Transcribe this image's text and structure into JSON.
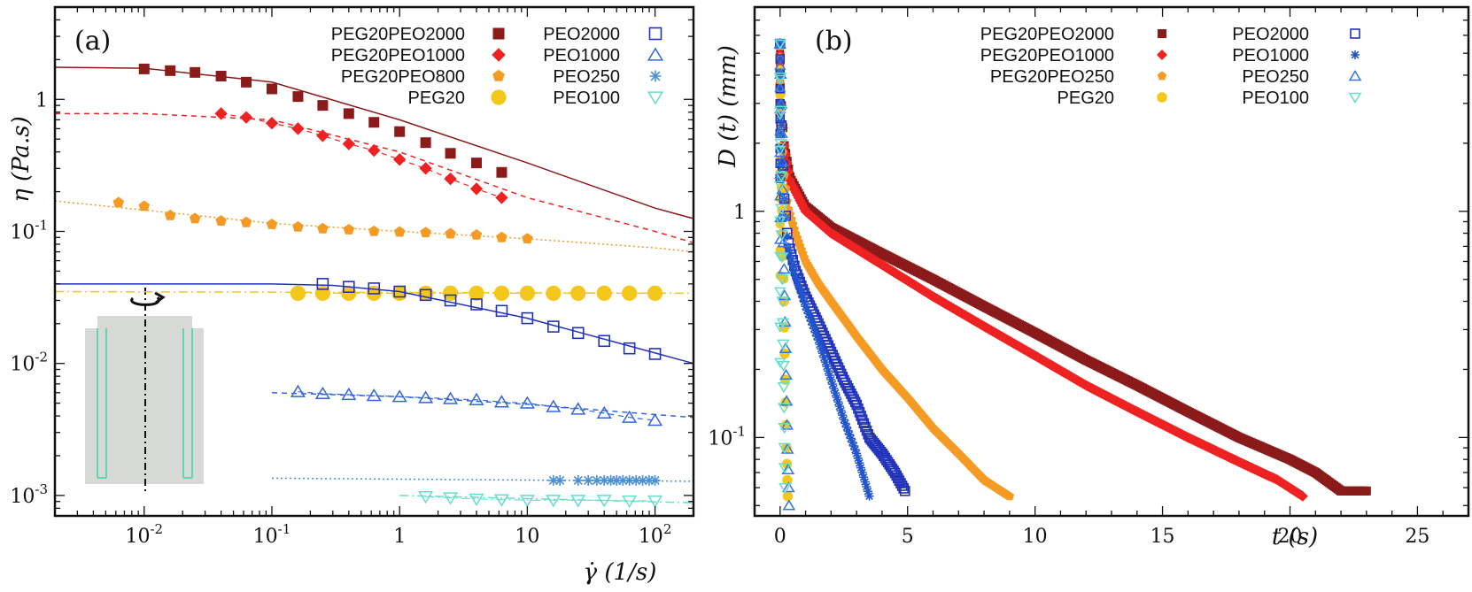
{
  "chart_data": [
    {
      "type": "scatter",
      "panel_label": "(a)",
      "xlabel": "γ̇ (1/s)",
      "ylabel": "η (Pa.s)",
      "xscale": "log",
      "yscale": "log",
      "xlim": [
        0.002,
        200
      ],
      "ylim": [
        0.0007,
        5
      ],
      "xticks": [
        {
          "v": 0.01,
          "base": "10",
          "exp": "-2"
        },
        {
          "v": 0.1,
          "base": "10",
          "exp": "-1"
        },
        {
          "v": 1,
          "base": "1",
          "exp": ""
        },
        {
          "v": 10,
          "base": "10",
          "exp": ""
        },
        {
          "v": 100,
          "base": "10",
          "exp": "2"
        }
      ],
      "yticks": [
        {
          "v": 0.001,
          "base": "10",
          "exp": "-3"
        },
        {
          "v": 0.01,
          "base": "10",
          "exp": "-2"
        },
        {
          "v": 0.1,
          "base": "10",
          "exp": "-1"
        },
        {
          "v": 1,
          "base": "1",
          "exp": ""
        }
      ],
      "series": [
        {
          "name": "PEG20PEO2000",
          "marker": "square-filled",
          "color": "#8b1a1a",
          "x": [
            0.01,
            0.016,
            0.025,
            0.04,
            0.063,
            0.1,
            0.16,
            0.25,
            0.4,
            0.63,
            1,
            1.6,
            2.5,
            4,
            6.3
          ],
          "y": [
            1.7,
            1.65,
            1.6,
            1.5,
            1.35,
            1.2,
            1.05,
            0.9,
            0.78,
            0.67,
            0.57,
            0.47,
            0.39,
            0.33,
            0.28
          ],
          "fit": {
            "type": "solid",
            "x": [
              0.002,
              0.01,
              0.1,
              1,
              10,
              100,
              200
            ],
            "y": [
              1.75,
              1.72,
              1.35,
              0.7,
              0.33,
              0.15,
              0.125
            ]
          }
        },
        {
          "name": "PEG20PEO1000",
          "marker": "diamond-filled",
          "color": "#ee2222",
          "x": [
            0.04,
            0.063,
            0.1,
            0.16,
            0.25,
            0.4,
            0.63,
            1,
            1.6,
            2.5,
            4,
            6.3
          ],
          "y": [
            0.78,
            0.73,
            0.66,
            0.6,
            0.53,
            0.46,
            0.41,
            0.35,
            0.3,
            0.25,
            0.21,
            0.18
          ],
          "fit": {
            "type": "dashed",
            "x": [
              0.002,
              0.01,
              0.1,
              1,
              10,
              100,
              200
            ],
            "y": [
              0.78,
              0.78,
              0.7,
              0.4,
              0.18,
              0.1,
              0.082
            ]
          }
        },
        {
          "name": "PEG20PEO800",
          "marker": "pentagon-filled",
          "color": "#f59a23",
          "x": [
            0.0063,
            0.01,
            0.016,
            0.025,
            0.04,
            0.063,
            0.1,
            0.16,
            0.25,
            0.4,
            0.63,
            1,
            1.6,
            2.5,
            4,
            6.3,
            10
          ],
          "y": [
            0.165,
            0.155,
            0.132,
            0.125,
            0.12,
            0.117,
            0.113,
            0.108,
            0.105,
            0.103,
            0.1,
            0.099,
            0.098,
            0.096,
            0.094,
            0.09,
            0.088
          ],
          "fit": {
            "type": "dotted",
            "x": [
              0.002,
              0.01,
              0.1,
              1,
              10,
              100,
              200
            ],
            "y": [
              0.17,
              0.145,
              0.115,
              0.1,
              0.088,
              0.075,
              0.07
            ]
          }
        },
        {
          "name": "PEG20",
          "marker": "circle-filled",
          "color": "#f4c71b",
          "x": [
            0.16,
            0.25,
            0.4,
            0.63,
            1,
            1.6,
            2.5,
            4,
            6.3,
            10,
            16,
            25,
            40,
            63,
            100
          ],
          "y": [
            0.034,
            0.034,
            0.034,
            0.034,
            0.034,
            0.034,
            0.034,
            0.034,
            0.034,
            0.034,
            0.034,
            0.034,
            0.034,
            0.034,
            0.034
          ],
          "fit": {
            "type": "dashdot",
            "x": [
              0.002,
              200
            ],
            "y": [
              0.035,
              0.034
            ]
          }
        },
        {
          "name": "PEO2000",
          "marker": "square-open",
          "color": "#2233bb",
          "x": [
            0.25,
            0.4,
            0.63,
            1,
            1.6,
            2.5,
            4,
            6.3,
            10,
            16,
            25,
            40,
            63,
            100
          ],
          "y": [
            0.04,
            0.038,
            0.037,
            0.035,
            0.033,
            0.03,
            0.028,
            0.025,
            0.022,
            0.019,
            0.017,
            0.0148,
            0.013,
            0.0118
          ],
          "fit": {
            "type": "solid",
            "x": [
              0.002,
              0.1,
              0.3,
              1,
              10,
              100,
              200
            ],
            "y": [
              0.04,
              0.04,
              0.039,
              0.035,
              0.022,
              0.012,
              0.01
            ]
          }
        },
        {
          "name": "PEO1000",
          "marker": "triangle-open",
          "color": "#3366dd",
          "x": [
            0.16,
            0.25,
            0.4,
            0.63,
            1,
            1.6,
            2.5,
            4,
            6.3,
            10,
            16,
            25,
            40,
            63,
            100
          ],
          "y": [
            0.0061,
            0.0059,
            0.0058,
            0.0057,
            0.0056,
            0.0055,
            0.0054,
            0.0053,
            0.0051,
            0.005,
            0.0047,
            0.0045,
            0.0042,
            0.0039,
            0.0037
          ],
          "fit": {
            "type": "dashed",
            "x": [
              0.1,
              1,
              10,
              100,
              200
            ],
            "y": [
              0.006,
              0.0056,
              0.0049,
              0.0041,
              0.0039
            ]
          }
        },
        {
          "name": "PEO250",
          "marker": "star",
          "color": "#4a90d9",
          "x": [
            16,
            18,
            25,
            30,
            35,
            40,
            45,
            50,
            56,
            63,
            71,
            80,
            90,
            100
          ],
          "y": [
            0.0013,
            0.0013,
            0.0013,
            0.0013,
            0.0013,
            0.0013,
            0.0013,
            0.0013,
            0.0013,
            0.0013,
            0.0013,
            0.0013,
            0.0013,
            0.0013
          ],
          "fit": {
            "type": "dotted",
            "x": [
              0.1,
              200
            ],
            "y": [
              0.00135,
              0.00128
            ]
          }
        },
        {
          "name": "PEO100",
          "marker": "triangle-down-open",
          "color": "#66ddcc",
          "x": [
            1.6,
            2.5,
            4,
            6.3,
            10,
            16,
            25,
            40,
            63,
            100
          ],
          "y": [
            0.00098,
            0.00096,
            0.00094,
            0.00093,
            0.00092,
            0.00092,
            0.00092,
            0.00092,
            0.00091,
            0.00091
          ],
          "fit": {
            "type": "dashdot",
            "x": [
              1,
              200
            ],
            "y": [
              0.001,
              0.00088
            ]
          }
        }
      ],
      "legend": [
        [
          "PEG20PEO2000",
          "PEG20PEO1000",
          "PEG20PEO800",
          "PEG20"
        ],
        [
          "PEO2000",
          "PEO1000",
          "PEO250",
          "PEO100"
        ]
      ],
      "inset": "rheometer-cup-bob-schematic"
    },
    {
      "type": "scatter",
      "panel_label": "(b)",
      "xlabel": "t (s)",
      "ylabel": "D (t) (mm)",
      "xscale": "linear",
      "yscale": "log",
      "xlim": [
        -1,
        27
      ],
      "ylim": [
        0.045,
        8
      ],
      "xticks": [
        0,
        5,
        10,
        15,
        20,
        25
      ],
      "yticks": [
        {
          "v": 0.1,
          "base": "10",
          "exp": "-1"
        },
        {
          "v": 1,
          "base": "1",
          "exp": ""
        }
      ],
      "series": [
        {
          "name": "PEG20PEO2000",
          "marker": "square-filled",
          "color": "#8b1a1a",
          "t": [
            0,
            0.05,
            0.15,
            0.4,
            1,
            2,
            4,
            6,
            8,
            10,
            12,
            14,
            16,
            18,
            20,
            21,
            22,
            23
          ],
          "d": [
            5.5,
            3,
            2,
            1.4,
            1.05,
            0.85,
            0.65,
            0.5,
            0.38,
            0.29,
            0.22,
            0.17,
            0.13,
            0.1,
            0.08,
            0.07,
            0.058,
            0.058
          ]
        },
        {
          "name": "PEG20PEO1000",
          "marker": "diamond-filled",
          "color": "#ee2222",
          "t": [
            0,
            0.05,
            0.15,
            0.4,
            1,
            2,
            4,
            6,
            8,
            10,
            12,
            14,
            16,
            18,
            19.5,
            20.5
          ],
          "d": [
            5.5,
            3,
            2,
            1.35,
            1.0,
            0.8,
            0.58,
            0.42,
            0.31,
            0.23,
            0.17,
            0.13,
            0.1,
            0.078,
            0.065,
            0.055
          ]
        },
        {
          "name": "PEG20PEO250",
          "marker": "pentagon-filled",
          "color": "#f59a23",
          "t": [
            0,
            0.05,
            0.15,
            0.3,
            0.6,
            1,
            1.5,
            2,
            3,
            4,
            5,
            6,
            7,
            8,
            9
          ],
          "d": [
            5.5,
            2.5,
            1.5,
            1.05,
            0.8,
            0.6,
            0.48,
            0.4,
            0.28,
            0.2,
            0.15,
            0.11,
            0.085,
            0.065,
            0.055
          ]
        },
        {
          "name": "PEG20",
          "marker": "circle-filled",
          "color": "#f4c71b",
          "t": [
            0,
            0.02,
            0.05,
            0.1,
            0.15,
            0.2,
            0.25,
            0.3
          ],
          "d": [
            5.5,
            3,
            1.6,
            0.8,
            0.4,
            0.18,
            0.09,
            0.055
          ]
        },
        {
          "name": "PEO2000",
          "marker": "square-open",
          "color": "#2233bb",
          "t": [
            0,
            0.05,
            0.15,
            0.3,
            0.6,
            1,
            1.5,
            2,
            2.5,
            3,
            3.5,
            4,
            4.5,
            4.9
          ],
          "d": [
            5.5,
            2.5,
            1.2,
            0.75,
            0.55,
            0.42,
            0.32,
            0.24,
            0.18,
            0.14,
            0.1,
            0.085,
            0.07,
            0.058
          ]
        },
        {
          "name": "PEO1000",
          "marker": "star",
          "color": "#2255cc",
          "t": [
            0,
            0.05,
            0.15,
            0.3,
            0.6,
            1,
            1.5,
            2,
            2.5,
            3,
            3.5
          ],
          "d": [
            5.5,
            2.5,
            1.2,
            0.72,
            0.52,
            0.38,
            0.27,
            0.18,
            0.12,
            0.085,
            0.055
          ]
        },
        {
          "name": "PEO250",
          "marker": "triangle-open",
          "color": "#3377dd",
          "t": [
            0,
            0.05,
            0.1,
            0.15,
            0.2,
            0.25,
            0.3,
            0.35
          ],
          "d": [
            5.5,
            2.5,
            1.2,
            0.6,
            0.3,
            0.15,
            0.08,
            0.05
          ]
        },
        {
          "name": "PEO100",
          "marker": "triangle-down-open",
          "color": "#66ddcc",
          "t": [
            0,
            0.03,
            0.06,
            0.1,
            0.15,
            0.2
          ],
          "d": [
            5.5,
            2.2,
            0.9,
            0.4,
            0.15,
            0.06
          ]
        }
      ],
      "legend": [
        [
          "PEG20PEO2000",
          "PEG20PEO1000",
          "PEG20PEO250",
          "PEG20"
        ],
        [
          "PEO2000",
          "PEO1000",
          "PEO250",
          "PEO100"
        ]
      ]
    }
  ]
}
